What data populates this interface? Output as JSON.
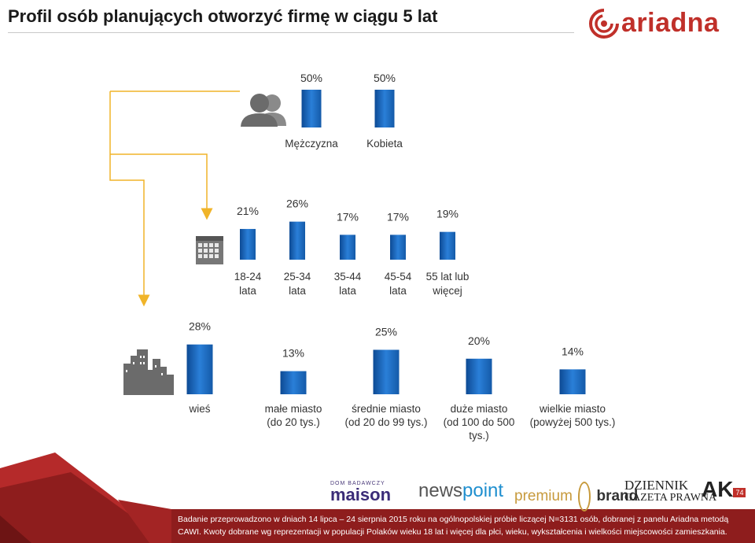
{
  "header": {
    "title": "Profil osób planujących otworzyć firmę w ciągu 5 lat",
    "logo_text": "ariadna"
  },
  "icons": {
    "gender": "people-icon",
    "age": "calendar-icon",
    "place": "city-icon",
    "logo": "ariadna-logo-icon"
  },
  "colors": {
    "bar": "#1f6fc5",
    "bar_dark": "#0d4a94",
    "arrow": "#f0b429",
    "footer_red": "#8e1d1d",
    "accent_red": "#c0302a"
  },
  "chart_data": [
    {
      "type": "bar",
      "group": "gender",
      "categories": [
        "Mężczyzna",
        "Kobieta"
      ],
      "values": [
        50,
        50
      ],
      "labels": [
        "50%",
        "50%"
      ]
    },
    {
      "type": "bar",
      "group": "age",
      "categories": [
        "18-24 lata",
        "25-34 lata",
        "35-44 lata",
        "45-54 lata",
        "55 lat lub więcej"
      ],
      "category_lines": [
        [
          "18-24",
          "lata"
        ],
        [
          "25-34",
          "lata"
        ],
        [
          "35-44",
          "lata"
        ],
        [
          "45-54",
          "lata"
        ],
        [
          "55 lat lub",
          "więcej"
        ]
      ],
      "values": [
        21,
        26,
        17,
        17,
        19
      ],
      "labels": [
        "21%",
        "26%",
        "17%",
        "17%",
        "19%"
      ]
    },
    {
      "type": "bar",
      "group": "place",
      "categories": [
        "wieś",
        "małe miasto (do 20 tys.)",
        "średnie miasto (od 20 do 99 tys.)",
        "duże miasto (od 100 do 500 tys.)",
        "wielkie miasto (powyżej 500 tys.)"
      ],
      "category_lines": [
        [
          "wieś"
        ],
        [
          "małe miasto",
          "(do 20 tys.)"
        ],
        [
          "średnie miasto",
          "(od 20 do 99 tys.)"
        ],
        [
          "duże miasto",
          "(od 100 do 500",
          "tys.)"
        ],
        [
          "wielkie miasto",
          "(powyżej 500 tys.)"
        ]
      ],
      "values": [
        28,
        13,
        25,
        20,
        14
      ],
      "labels": [
        "28%",
        "13%",
        "25%",
        "20%",
        "14%"
      ]
    }
  ],
  "partners": {
    "maison_top": "DOM BADAWCZY",
    "maison": "maison",
    "newspoint_a": "news",
    "newspoint_b": "point",
    "premium_a": "premium",
    "premium_b": "brand",
    "dgp_1": "DZIENNIK",
    "dgp_2": "GAZETA PRAWNA",
    "ak": "AK",
    "ak_badge": "74"
  },
  "footer": {
    "line1": "Badanie przeprowadzono w dniach 14 lipca – 24 sierpnia 2015 roku na ogólnopolskiej próbie liczącej N=3131 osób, dobranej z panelu Ariadna metodą",
    "line2": "CAWI. Kwoty dobrane wg reprezentacji w populacji Polaków wieku 18 lat i więcej dla płci, wieku, wykształcenia i wielkości miejscowości zamieszkania."
  }
}
